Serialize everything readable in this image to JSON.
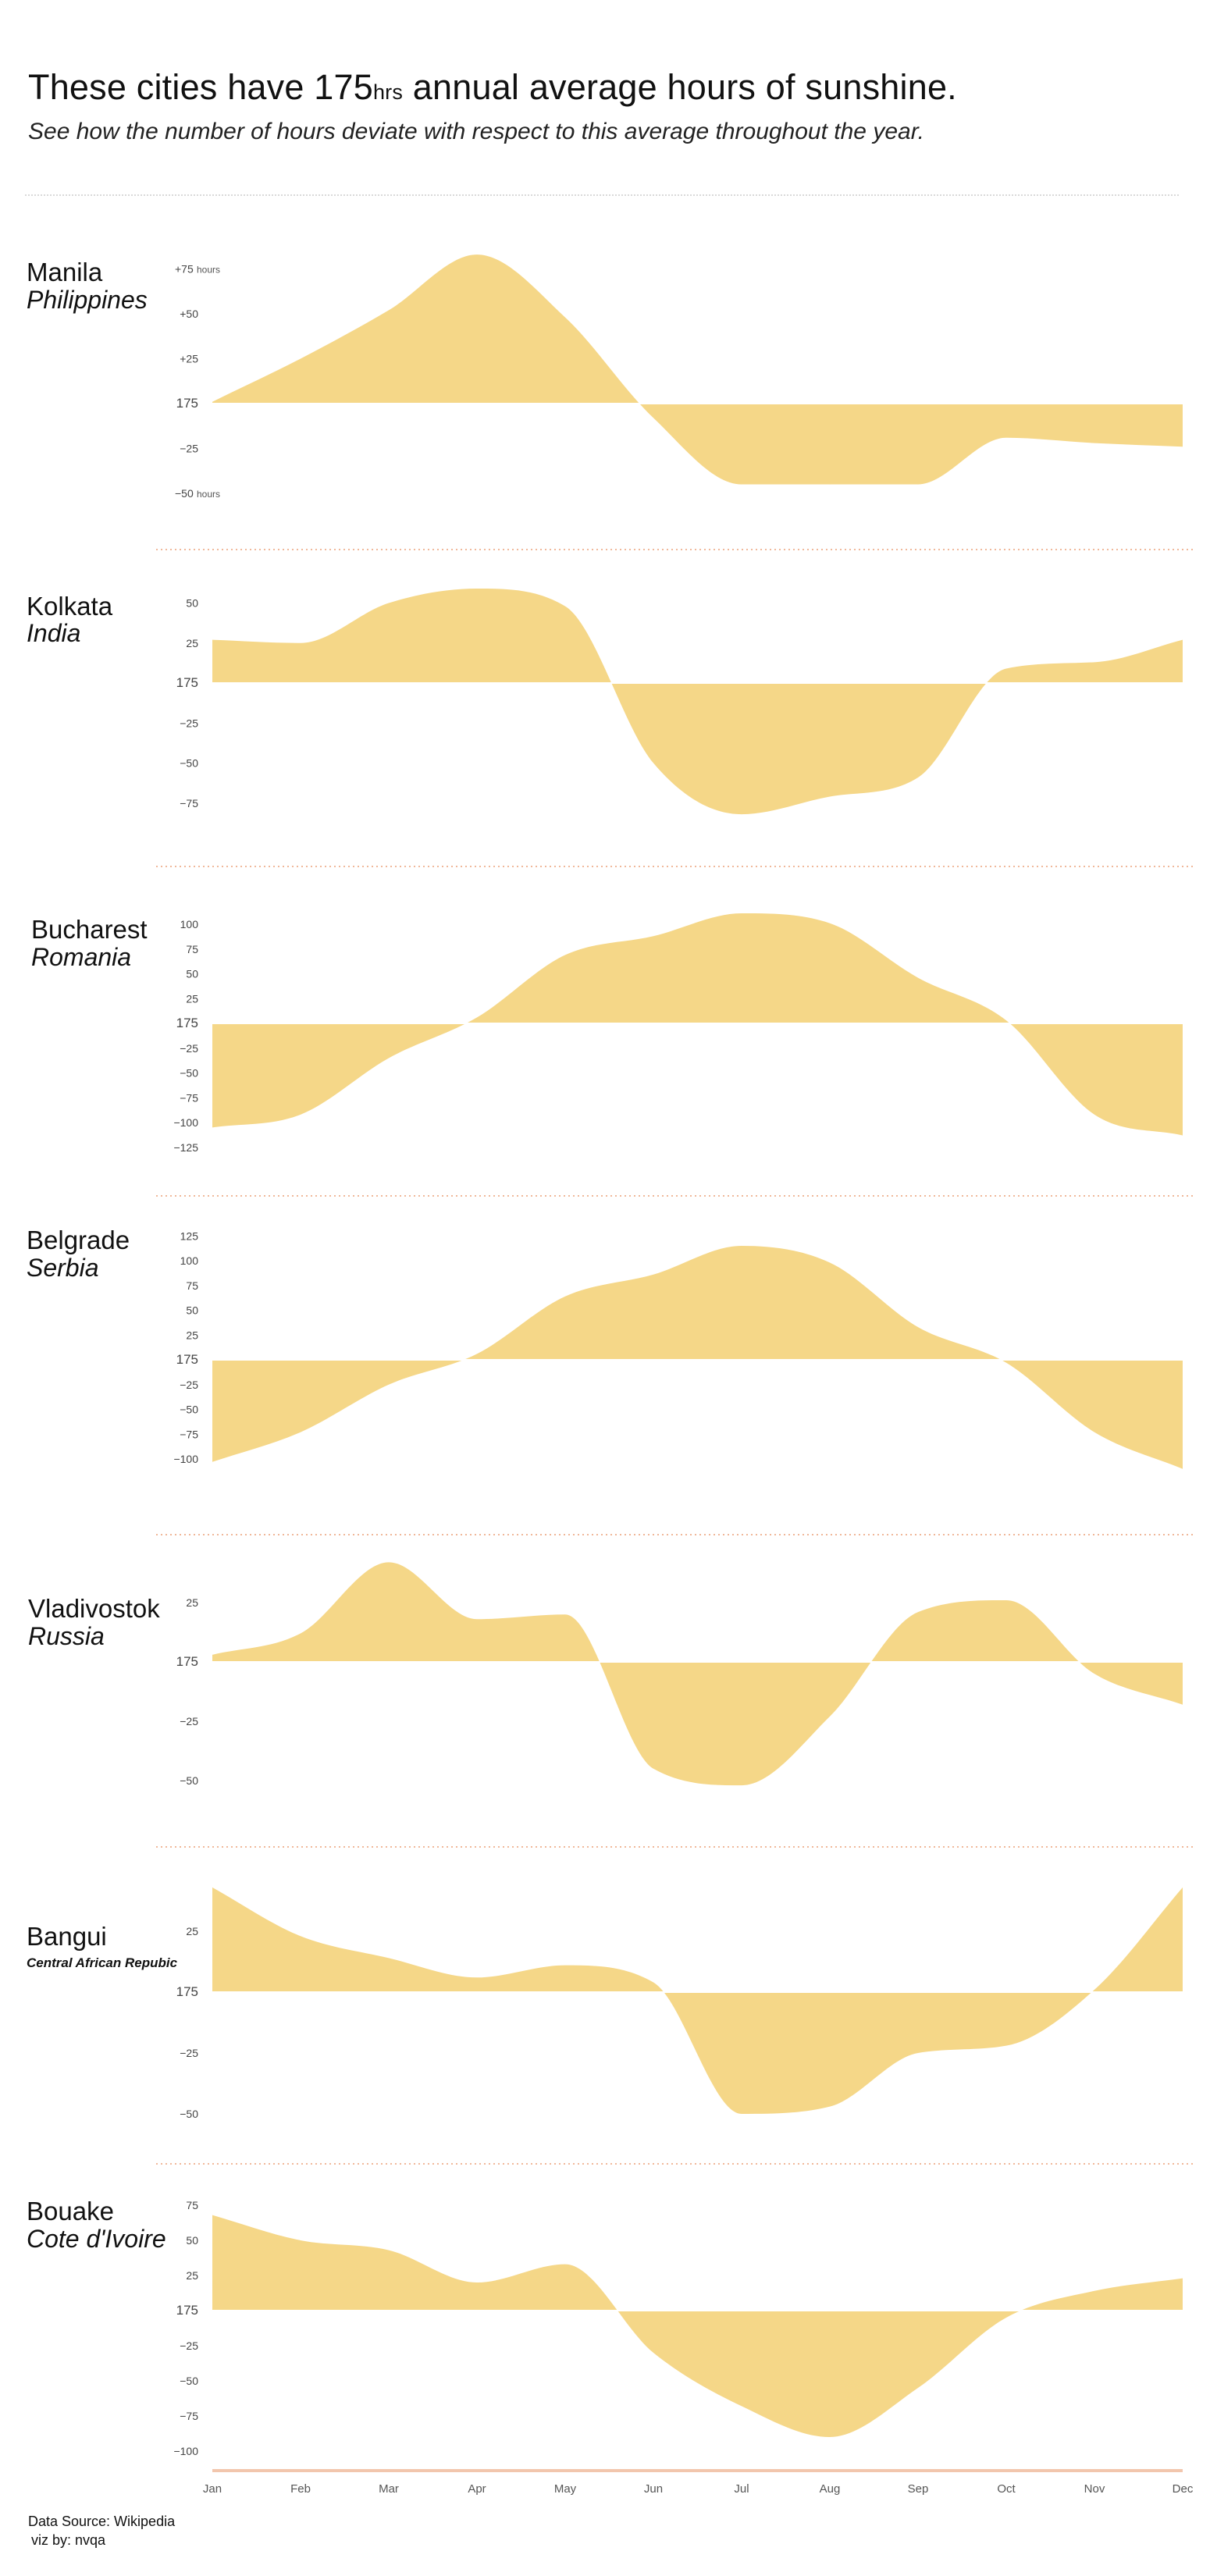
{
  "header": {
    "title_pre": "These cities have 175",
    "title_unit": "hrs",
    "title_post": " annual average hours of sunshine.",
    "subtitle": "See how the number of hours deviate with respect to this average throughout the year."
  },
  "footer": {
    "source": "Data Source: Wikipedia",
    "credit": "viz by: nvqa"
  },
  "colors": {
    "area": "#f5d788",
    "divider": "#f0b89a",
    "axis": "#f2c6ad",
    "top_rule": "#d9d9d9"
  },
  "chart_data": [
    {
      "type": "area",
      "city": "Manila",
      "country": "Philippines",
      "categories": [
        "Jan",
        "Feb",
        "Mar",
        "Apr",
        "May",
        "Jun",
        "Jul",
        "Aug",
        "Sep",
        "Oct",
        "Nov",
        "Dec"
      ],
      "baseline": 175,
      "ylim": [
        -50,
        75
      ],
      "unit": "hours",
      "yticks": [
        {
          "v": 75,
          "label": "+75",
          "suffix": "hours"
        },
        {
          "v": 50,
          "label": "+50",
          "suffix": ""
        },
        {
          "v": 25,
          "label": "+25",
          "suffix": ""
        },
        {
          "v": 0,
          "label": "175",
          "suffix": ""
        },
        {
          "v": -25,
          "label": "−25",
          "suffix": ""
        },
        {
          "v": -50,
          "label": "−50",
          "suffix": "hours"
        }
      ],
      "values": [
        1,
        25,
        52,
        83,
        48,
        -8,
        -45,
        -45,
        -45,
        -19,
        -22,
        -24
      ]
    },
    {
      "type": "area",
      "city": "Kolkata",
      "country": "India",
      "categories": [
        "Jan",
        "Feb",
        "Mar",
        "Apr",
        "May",
        "Jun",
        "Jul",
        "Aug",
        "Sep",
        "Oct",
        "Nov",
        "Dec"
      ],
      "baseline": 175,
      "ylim": [
        -75,
        50
      ],
      "yticks": [
        {
          "v": 50,
          "label": "50"
        },
        {
          "v": 25,
          "label": "25"
        },
        {
          "v": 0,
          "label": "175"
        },
        {
          "v": -25,
          "label": "−25"
        },
        {
          "v": -50,
          "label": "−50"
        },
        {
          "v": -75,
          "label": "−75"
        }
      ],
      "values": [
        27,
        25,
        50,
        59,
        48,
        -50,
        -82,
        -71,
        -59,
        9,
        13,
        27
      ]
    },
    {
      "type": "area",
      "city": "Bucharest",
      "country": "Romania",
      "categories": [
        "Jan",
        "Feb",
        "Mar",
        "Apr",
        "May",
        "Jun",
        "Jul",
        "Aug",
        "Sep",
        "Oct",
        "Nov",
        "Dec"
      ],
      "baseline": 175,
      "ylim": [
        -125,
        100
      ],
      "yticks": [
        {
          "v": 100,
          "label": "100"
        },
        {
          "v": 75,
          "label": "75"
        },
        {
          "v": 50,
          "label": "50"
        },
        {
          "v": 25,
          "label": "25"
        },
        {
          "v": 0,
          "label": "175"
        },
        {
          "v": -25,
          "label": "−25"
        },
        {
          "v": -50,
          "label": "−50"
        },
        {
          "v": -75,
          "label": "−75"
        },
        {
          "v": -100,
          "label": "−100"
        },
        {
          "v": -125,
          "label": "−125"
        }
      ],
      "values": [
        -105,
        -92,
        -35,
        6,
        69,
        88,
        111,
        101,
        46,
        3,
        -92,
        -113
      ]
    },
    {
      "type": "area",
      "city": "Belgrade",
      "country": "Serbia",
      "categories": [
        "Jan",
        "Feb",
        "Mar",
        "Apr",
        "May",
        "Jun",
        "Jul",
        "Aug",
        "Sep",
        "Oct",
        "Nov",
        "Dec"
      ],
      "baseline": 175,
      "ylim": [
        -100,
        125
      ],
      "yticks": [
        {
          "v": 125,
          "label": "125"
        },
        {
          "v": 100,
          "label": "100"
        },
        {
          "v": 75,
          "label": "75"
        },
        {
          "v": 50,
          "label": "50"
        },
        {
          "v": 25,
          "label": "25"
        },
        {
          "v": 0,
          "label": "175"
        },
        {
          "v": -25,
          "label": "−25"
        },
        {
          "v": -50,
          "label": "−50"
        },
        {
          "v": -75,
          "label": "−75"
        },
        {
          "v": -100,
          "label": "−100"
        }
      ],
      "values": [
        -103,
        -73,
        -25,
        6,
        64,
        86,
        115,
        98,
        33,
        -3,
        -73,
        -110
      ]
    },
    {
      "type": "area",
      "city": "Vladivostok",
      "country": "Russia",
      "categories": [
        "Jan",
        "Feb",
        "Mar",
        "Apr",
        "May",
        "Jun",
        "Jul",
        "Aug",
        "Sep",
        "Oct",
        "Nov",
        "Dec"
      ],
      "baseline": 175,
      "ylim": [
        -50,
        25
      ],
      "yticks": [
        {
          "v": 25,
          "label": "25"
        },
        {
          "v": 0,
          "label": "175"
        },
        {
          "v": -25,
          "label": "−25"
        },
        {
          "v": -50,
          "label": "−50"
        }
      ],
      "values": [
        3,
        12,
        42,
        18,
        20,
        -45,
        -52,
        -23,
        21,
        26,
        -5,
        -18
      ]
    },
    {
      "type": "area",
      "city": "Bangui",
      "country": "Central African Repubic",
      "categories": [
        "Jan",
        "Feb",
        "Mar",
        "Apr",
        "May",
        "Jun",
        "Jul",
        "Aug",
        "Sep",
        "Oct",
        "Nov",
        "Dec"
      ],
      "baseline": 175,
      "ylim": [
        -50,
        25
      ],
      "yticks": [
        {
          "v": 25,
          "label": "25"
        },
        {
          "v": 0,
          "label": "175"
        },
        {
          "v": -25,
          "label": "−25"
        },
        {
          "v": -50,
          "label": "−50"
        }
      ],
      "values": [
        43,
        23,
        14,
        6,
        11,
        4,
        -50,
        -47,
        -25,
        -22,
        1,
        43
      ]
    },
    {
      "type": "area",
      "city": "Bouake",
      "country": "Cote d'Ivoire",
      "categories": [
        "Jan",
        "Feb",
        "Mar",
        "Apr",
        "May",
        "Jun",
        "Jul",
        "Aug",
        "Sep",
        "Oct",
        "Nov",
        "Dec"
      ],
      "baseline": 175,
      "ylim": [
        -100,
        75
      ],
      "yticks": [
        {
          "v": 75,
          "label": "75"
        },
        {
          "v": 50,
          "label": "50"
        },
        {
          "v": 25,
          "label": "25"
        },
        {
          "v": 0,
          "label": "175"
        },
        {
          "v": -25,
          "label": "−25"
        },
        {
          "v": -50,
          "label": "−50"
        },
        {
          "v": -75,
          "label": "−75"
        },
        {
          "v": -100,
          "label": "−100"
        }
      ],
      "values": [
        68,
        50,
        43,
        20,
        33,
        -30,
        -68,
        -90,
        -55,
        -5,
        14,
        23
      ]
    }
  ]
}
